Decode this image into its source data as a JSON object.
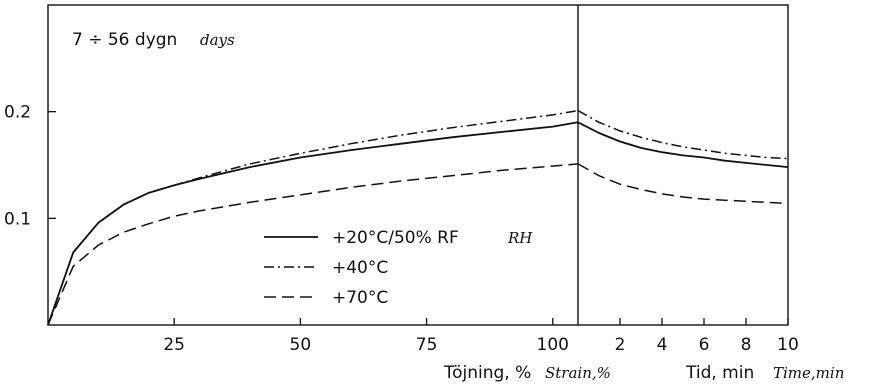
{
  "chart_data": {
    "type": "line",
    "title": "7 ÷ 56 dygn",
    "title_translation": "days",
    "ylim": [
      0,
      0.3
    ],
    "yticks": [
      "0.1",
      "0.2"
    ],
    "grid": false,
    "legend_placement": "lower-center",
    "panels": [
      {
        "name": "strain",
        "xlabel": "Töjning, %",
        "xlabel_translation": "Strain,%",
        "xlim": [
          0,
          105
        ],
        "xticks": [
          "25",
          "50",
          "75",
          "100"
        ],
        "series": [
          {
            "label": "+20°C/50% RF",
            "label_translation": "RH",
            "dash": "solid",
            "x": [
              0,
              5,
              10,
              15,
              20,
              25,
              30,
              40,
              50,
              60,
              70,
              80,
              90,
              100,
              105
            ],
            "y": [
              0.0,
              0.068,
              0.096,
              0.113,
              0.124,
              0.131,
              0.137,
              0.148,
              0.157,
              0.164,
              0.17,
              0.176,
              0.181,
              0.186,
              0.19
            ]
          },
          {
            "label": "+40°C",
            "dash": "dashdot",
            "x": [
              0,
              5,
              10,
              15,
              20,
              25,
              30,
              40,
              50,
              60,
              70,
              80,
              90,
              100,
              105
            ],
            "y": [
              0.0,
              0.068,
              0.096,
              0.113,
              0.124,
              0.131,
              0.138,
              0.151,
              0.161,
              0.17,
              0.178,
              0.185,
              0.191,
              0.197,
              0.201
            ]
          },
          {
            "label": "+70°C",
            "dash": "dashed",
            "x": [
              0,
              5,
              10,
              15,
              20,
              25,
              30,
              40,
              50,
              60,
              70,
              80,
              90,
              100,
              105
            ],
            "y": [
              0.0,
              0.055,
              0.075,
              0.087,
              0.095,
              0.102,
              0.107,
              0.115,
              0.122,
              0.129,
              0.135,
              0.14,
              0.145,
              0.149,
              0.151
            ]
          }
        ]
      },
      {
        "name": "time",
        "xlabel": "Tid, min",
        "xlabel_translation": "Time,min",
        "xlim": [
          0,
          10
        ],
        "xticks": [
          "2",
          "4",
          "6",
          "8",
          "10"
        ],
        "series": [
          {
            "label": "+20°C/50% RF",
            "x": [
              0,
              1,
              2,
              3,
              4,
              5,
              6,
              7,
              8,
              9,
              10
            ],
            "y": [
              0.19,
              0.18,
              0.172,
              0.166,
              0.162,
              0.159,
              0.157,
              0.154,
              0.152,
              0.15,
              0.148
            ]
          },
          {
            "label": "+40°C",
            "x": [
              0,
              1,
              2,
              3,
              4,
              5,
              6,
              7,
              8,
              9,
              10
            ],
            "y": [
              0.201,
              0.19,
              0.182,
              0.176,
              0.171,
              0.167,
              0.164,
              0.161,
              0.159,
              0.157,
              0.156
            ]
          },
          {
            "label": "+70°C",
            "x": [
              0,
              1,
              2,
              3,
              4,
              5,
              6,
              7,
              8,
              9,
              10
            ],
            "y": [
              0.151,
              0.14,
              0.132,
              0.127,
              0.123,
              0.12,
              0.118,
              0.117,
              0.116,
              0.115,
              0.114
            ]
          }
        ]
      }
    ]
  }
}
